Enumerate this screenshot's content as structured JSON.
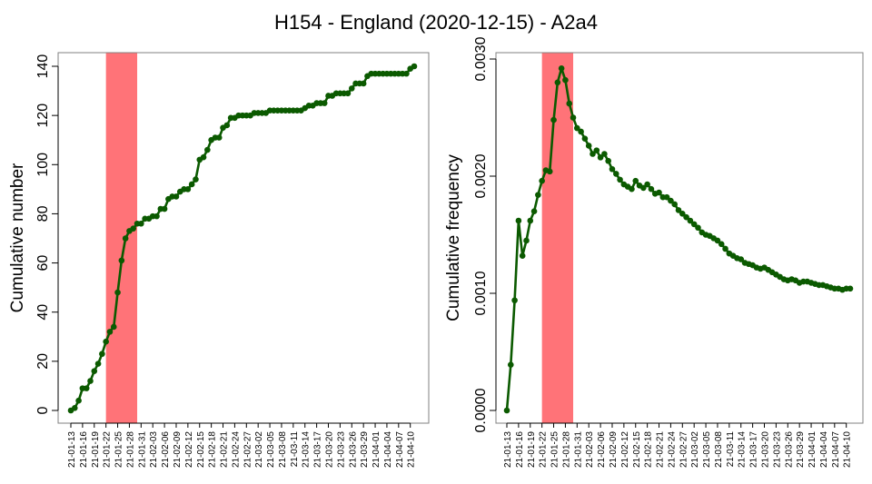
{
  "title": "H154 - England (2020-12-15) - A2a4",
  "colors": {
    "line": "#0b5a00",
    "band": "#ff7378",
    "axis": "#000000",
    "frame": "#808080"
  },
  "chart_data": [
    {
      "type": "line",
      "ylabel": "Cumulative number",
      "ylim": [
        0,
        140
      ],
      "yticks": [
        "0",
        "20",
        "40",
        "60",
        "80",
        "100",
        "120",
        "140"
      ],
      "x_tick_labels": [
        "21-01-13",
        "21-01-16",
        "21-01-19",
        "21-01-22",
        "21-01-25",
        "21-01-28",
        "21-01-31",
        "21-02-03",
        "21-02-06",
        "21-02-09",
        "21-02-12",
        "21-02-15",
        "21-02-18",
        "21-02-21",
        "21-02-24",
        "21-02-27",
        "21-03-02",
        "21-03-05",
        "21-03-08",
        "21-03-11",
        "21-03-14",
        "21-03-17",
        "21-03-20",
        "21-03-23",
        "21-03-26",
        "21-03-29",
        "21-04-01",
        "21-04-04",
        "21-04-07",
        "21-04-10"
      ],
      "x_range": [
        "21-01-13",
        "21-04-11"
      ],
      "highlight_band": [
        "21-01-22",
        "21-01-30"
      ],
      "x": [
        "21-01-13",
        "21-01-14",
        "21-01-15",
        "21-01-16",
        "21-01-17",
        "21-01-18",
        "21-01-19",
        "21-01-20",
        "21-01-21",
        "21-01-22",
        "21-01-23",
        "21-01-24",
        "21-01-25",
        "21-01-26",
        "21-01-27",
        "21-01-28",
        "21-01-29",
        "21-01-30",
        "21-01-31",
        "21-02-01",
        "21-02-02",
        "21-02-03",
        "21-02-04",
        "21-02-05",
        "21-02-06",
        "21-02-07",
        "21-02-08",
        "21-02-09",
        "21-02-10",
        "21-02-11",
        "21-02-12",
        "21-02-13",
        "21-02-14",
        "21-02-15",
        "21-02-16",
        "21-02-17",
        "21-02-18",
        "21-02-19",
        "21-02-20",
        "21-02-21",
        "21-02-22",
        "21-02-23",
        "21-02-24",
        "21-02-25",
        "21-02-26",
        "21-02-27",
        "21-02-28",
        "21-03-01",
        "21-03-02",
        "21-03-03",
        "21-03-04",
        "21-03-05",
        "21-03-06",
        "21-03-07",
        "21-03-08",
        "21-03-09",
        "21-03-10",
        "21-03-11",
        "21-03-12",
        "21-03-13",
        "21-03-14",
        "21-03-15",
        "21-03-16",
        "21-03-17",
        "21-03-18",
        "21-03-19",
        "21-03-20",
        "21-03-21",
        "21-03-22",
        "21-03-23",
        "21-03-24",
        "21-03-25",
        "21-03-26",
        "21-03-27",
        "21-03-28",
        "21-03-29",
        "21-03-30",
        "21-03-31",
        "21-04-01",
        "21-04-02",
        "21-04-03",
        "21-04-04",
        "21-04-05",
        "21-04-06",
        "21-04-07",
        "21-04-08",
        "21-04-09",
        "21-04-10",
        "21-04-11"
      ],
      "values": [
        0,
        1,
        4,
        9,
        9,
        12,
        16,
        19,
        23,
        28,
        32,
        34,
        48,
        61,
        70,
        73,
        74,
        76,
        76,
        78,
        78,
        79,
        79,
        82,
        82,
        86,
        87,
        87,
        89,
        90,
        90,
        92,
        94,
        102,
        103,
        106,
        110,
        111,
        111,
        115,
        116,
        119,
        119,
        120,
        120,
        120,
        120,
        121,
        121,
        121,
        121,
        122,
        122,
        122,
        122,
        122,
        122,
        122,
        122,
        122,
        123,
        124,
        124,
        125,
        125,
        125,
        128,
        128,
        129,
        129,
        129,
        129,
        131,
        133,
        133,
        133,
        136,
        137,
        137,
        137,
        137,
        137,
        137,
        137,
        137,
        137,
        137,
        139,
        140
      ]
    },
    {
      "type": "line",
      "ylabel": "Cumulative frequency",
      "ylim": [
        0,
        0.003
      ],
      "yticks": [
        "0.0000",
        "0.0010",
        "0.0020",
        "0.0030"
      ],
      "x_tick_labels": [
        "21-01-13",
        "21-01-16",
        "21-01-19",
        "21-01-22",
        "21-01-25",
        "21-01-28",
        "21-01-31",
        "21-02-03",
        "21-02-06",
        "21-02-09",
        "21-02-12",
        "21-02-15",
        "21-02-18",
        "21-02-21",
        "21-02-24",
        "21-02-27",
        "21-03-02",
        "21-03-05",
        "21-03-08",
        "21-03-11",
        "21-03-14",
        "21-03-17",
        "21-03-20",
        "21-03-23",
        "21-03-26",
        "21-03-29",
        "21-04-01",
        "21-04-04",
        "21-04-07",
        "21-04-10"
      ],
      "x_range": [
        "21-01-13",
        "21-04-11"
      ],
      "highlight_band": [
        "21-01-22",
        "21-01-30"
      ],
      "x": [
        "21-01-13",
        "21-01-14",
        "21-01-15",
        "21-01-16",
        "21-01-17",
        "21-01-18",
        "21-01-19",
        "21-01-20",
        "21-01-21",
        "21-01-22",
        "21-01-23",
        "21-01-24",
        "21-01-25",
        "21-01-26",
        "21-01-27",
        "21-01-28",
        "21-01-29",
        "21-01-30",
        "21-01-31",
        "21-02-01",
        "21-02-02",
        "21-02-03",
        "21-02-04",
        "21-02-05",
        "21-02-06",
        "21-02-07",
        "21-02-08",
        "21-02-09",
        "21-02-10",
        "21-02-11",
        "21-02-12",
        "21-02-13",
        "21-02-14",
        "21-02-15",
        "21-02-16",
        "21-02-17",
        "21-02-18",
        "21-02-19",
        "21-02-20",
        "21-02-21",
        "21-02-22",
        "21-02-23",
        "21-02-24",
        "21-02-25",
        "21-02-26",
        "21-02-27",
        "21-02-28",
        "21-03-01",
        "21-03-02",
        "21-03-03",
        "21-03-04",
        "21-03-05",
        "21-03-06",
        "21-03-07",
        "21-03-08",
        "21-03-09",
        "21-03-10",
        "21-03-11",
        "21-03-12",
        "21-03-13",
        "21-03-14",
        "21-03-15",
        "21-03-16",
        "21-03-17",
        "21-03-18",
        "21-03-19",
        "21-03-20",
        "21-03-21",
        "21-03-22",
        "21-03-23",
        "21-03-24",
        "21-03-25",
        "21-03-26",
        "21-03-27",
        "21-03-28",
        "21-03-29",
        "21-03-30",
        "21-03-31",
        "21-04-01",
        "21-04-02",
        "21-04-03",
        "21-04-04",
        "21-04-05",
        "21-04-06",
        "21-04-07",
        "21-04-08",
        "21-04-09",
        "21-04-10",
        "21-04-11"
      ],
      "values": [
        0.0,
        0.00039,
        0.00094,
        0.00162,
        0.00132,
        0.00145,
        0.00162,
        0.0017,
        0.00184,
        0.00196,
        0.00205,
        0.00204,
        0.00248,
        0.0028,
        0.00292,
        0.00282,
        0.00262,
        0.0025,
        0.00241,
        0.00238,
        0.00232,
        0.00226,
        0.00219,
        0.00222,
        0.00216,
        0.00219,
        0.00213,
        0.00206,
        0.00202,
        0.00197,
        0.00193,
        0.00191,
        0.00189,
        0.00196,
        0.00192,
        0.0019,
        0.00193,
        0.00189,
        0.00185,
        0.00186,
        0.00182,
        0.00182,
        0.00179,
        0.00176,
        0.00171,
        0.00168,
        0.00165,
        0.00162,
        0.00159,
        0.00156,
        0.00152,
        0.0015,
        0.00149,
        0.00147,
        0.00145,
        0.00142,
        0.00138,
        0.00134,
        0.00132,
        0.0013,
        0.00129,
        0.00126,
        0.00125,
        0.00124,
        0.00122,
        0.00121,
        0.00122,
        0.0012,
        0.00118,
        0.00116,
        0.00114,
        0.00112,
        0.00111,
        0.00112,
        0.00111,
        0.00109,
        0.0011,
        0.0011,
        0.00109,
        0.00108,
        0.00107,
        0.00107,
        0.00106,
        0.00105,
        0.00104,
        0.00104,
        0.00103,
        0.00104,
        0.00104
      ]
    }
  ]
}
